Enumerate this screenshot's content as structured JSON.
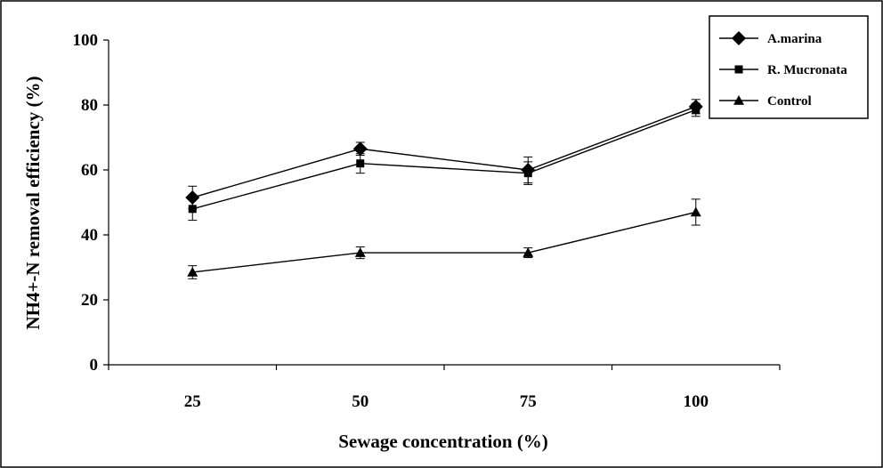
{
  "chart_data": {
    "type": "line",
    "title": "",
    "xlabel": "Sewage concentration (%)",
    "ylabel": "NH4+-N removal efficiency (%)",
    "categories": [
      "25",
      "50",
      "75",
      "100"
    ],
    "ylim": [
      0,
      100
    ],
    "yticks": [
      "0",
      "20",
      "40",
      "60",
      "80",
      "100"
    ],
    "grid": false,
    "legend_position": "top-right",
    "series": [
      {
        "name": "A.marina",
        "marker": "diamond",
        "values": [
          51.5,
          66.5,
          60,
          79.5
        ],
        "errors": [
          3.5,
          2,
          4,
          2.2
        ]
      },
      {
        "name": "R. Mucronata",
        "marker": "square",
        "values": [
          48,
          62,
          59,
          78.5
        ],
        "errors": [
          3.5,
          3,
          3.5,
          2
        ]
      },
      {
        "name": "Control",
        "marker": "triangle",
        "values": [
          28.5,
          34.5,
          34.5,
          47
        ],
        "errors": [
          2,
          1.8,
          1.5,
          4
        ]
      }
    ],
    "colors": {
      "line": "#000000",
      "background": "#ffffff"
    }
  }
}
